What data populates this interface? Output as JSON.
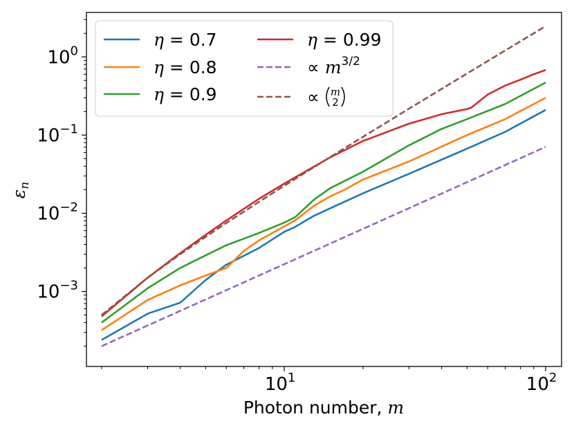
{
  "chart_data": {
    "type": "line",
    "title": "",
    "xlabel_prefix": "Photon number, ",
    "xlabel_var": "m",
    "ylabel_var": "ε",
    "ylabel_sub": "n",
    "xscale": "log",
    "yscale": "log",
    "xlim": [
      1.75,
      115
    ],
    "ylim": [
      0.00011,
      3.7
    ],
    "grid": false,
    "legend_position": "top-left",
    "legend_columns": 2,
    "x_ticks": [
      {
        "value": 10,
        "base": "10",
        "exp": "1"
      },
      {
        "value": 100,
        "base": "10",
        "exp": "2"
      }
    ],
    "y_ticks": [
      {
        "value": 0.001,
        "base": "10",
        "exp": "−3"
      },
      {
        "value": 0.01,
        "base": "10",
        "exp": "−2"
      },
      {
        "value": 0.1,
        "base": "10",
        "exp": "−1"
      },
      {
        "value": 1,
        "base": "10",
        "exp": "0"
      }
    ],
    "series": [
      {
        "name": "η = 0.7",
        "legend_var": "η",
        "legend_text": " = 0.7",
        "color": "#1f77b4",
        "dash": "solid",
        "x": [
          2,
          3,
          4,
          5,
          6,
          8,
          10,
          11,
          13,
          15,
          20,
          30,
          50,
          70,
          100
        ],
        "y": [
          0.00024,
          0.00052,
          0.00072,
          0.0014,
          0.0022,
          0.0036,
          0.0058,
          0.0067,
          0.0093,
          0.0116,
          0.018,
          0.032,
          0.067,
          0.11,
          0.21
        ]
      },
      {
        "name": "η = 0.8",
        "legend_var": "η",
        "legend_text": " = 0.8",
        "color": "#ff7f0e",
        "dash": "solid",
        "x": [
          2,
          3,
          4,
          5,
          6,
          7,
          8,
          10,
          11,
          13,
          15,
          17,
          20,
          30,
          50,
          70,
          100
        ],
        "y": [
          0.00032,
          0.00078,
          0.0012,
          0.0016,
          0.002,
          0.0033,
          0.0045,
          0.0068,
          0.0081,
          0.0125,
          0.0165,
          0.02,
          0.027,
          0.046,
          0.1,
          0.16,
          0.3
        ]
      },
      {
        "name": "η = 0.9",
        "legend_var": "η",
        "legend_text": " = 0.9",
        "color": "#2ca02c",
        "dash": "solid",
        "x": [
          2,
          3,
          4,
          5,
          6,
          8,
          10,
          11,
          13,
          15,
          20,
          30,
          40,
          50,
          70,
          100
        ],
        "y": [
          0.0004,
          0.0011,
          0.002,
          0.0029,
          0.0039,
          0.0056,
          0.0076,
          0.0089,
          0.015,
          0.021,
          0.034,
          0.074,
          0.12,
          0.16,
          0.25,
          0.47
        ]
      },
      {
        "name": "η = 0.99",
        "legend_var": "η",
        "legend_text": " = 0.99",
        "color": "#d62728",
        "dash": "solid",
        "x": [
          2,
          3,
          4,
          5,
          6,
          8,
          10,
          15,
          20,
          30,
          40,
          50,
          52,
          60,
          70,
          80,
          90,
          100
        ],
        "y": [
          0.00048,
          0.0015,
          0.0031,
          0.0053,
          0.0081,
          0.0153,
          0.024,
          0.052,
          0.084,
          0.14,
          0.185,
          0.215,
          0.225,
          0.33,
          0.43,
          0.51,
          0.6,
          0.68
        ]
      },
      {
        "name": "∝ m^3/2",
        "legend_text": "∝ ",
        "legend_var": "m",
        "legend_sup": "3/2",
        "color": "#9467bd",
        "dash": "dashed",
        "x": [
          2,
          100
        ],
        "y": [
          0.0002,
          0.0707
        ]
      },
      {
        "name": "∝ (m choose 2)",
        "legend_text": "∝ ",
        "legend_binom_top": "m",
        "legend_binom_bottom": "2",
        "color": "#8c564b",
        "dash": "dashed",
        "x": [
          2,
          3,
          4,
          5,
          6,
          8,
          10,
          15,
          20,
          30,
          50,
          70,
          100
        ],
        "y": [
          0.0005,
          0.0015,
          0.003,
          0.005,
          0.0075,
          0.014,
          0.0225,
          0.0525,
          0.095,
          0.2175,
          0.6125,
          1.2075,
          2.475
        ]
      }
    ]
  }
}
